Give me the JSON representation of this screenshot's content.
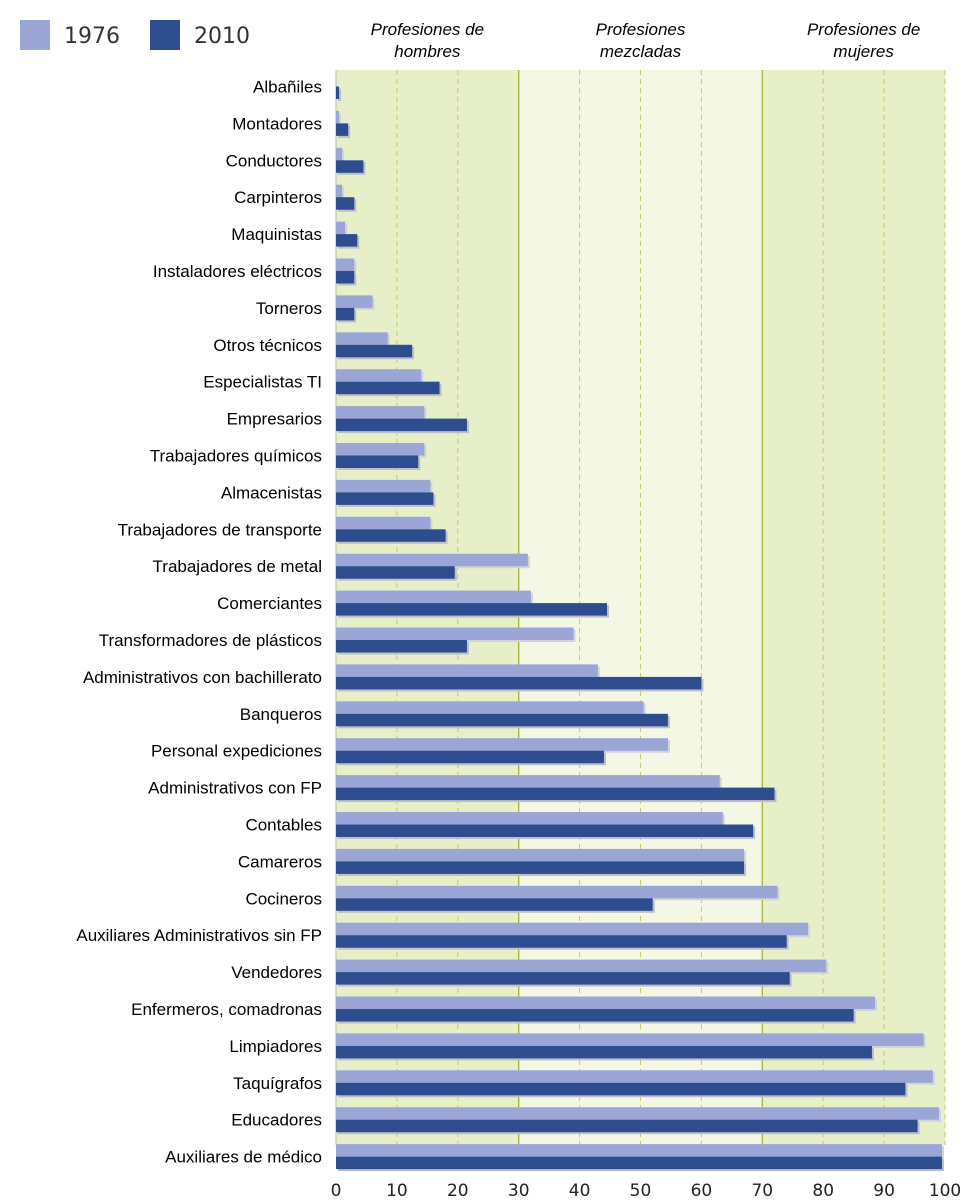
{
  "chart_data": {
    "type": "bar",
    "orientation": "horizontal",
    "xlim": [
      0,
      100
    ],
    "xticks": [
      "0",
      "10",
      "20",
      "30",
      "40",
      "50",
      "60",
      "70",
      "80",
      "90",
      "100"
    ],
    "grid": true,
    "legend_position": "top-left",
    "zones": [
      {
        "label_line1": "Profesiones de",
        "label_line2": "hombres",
        "range": [
          0,
          30
        ],
        "color": "#e6efc7"
      },
      {
        "label_line1": "Profesiones",
        "label_line2": "mezcladas",
        "range": [
          30,
          70
        ],
        "color": "#f4f7e4"
      },
      {
        "label_line1": "Profesiones de",
        "label_line2": "mujeres",
        "range": [
          70,
          100
        ],
        "color": "#e6efc7"
      }
    ],
    "categories": [
      "Albañiles",
      "Montadores",
      "Conductores",
      "Carpinteros",
      "Maquinistas",
      "Instaladores eléctricos",
      "Torneros",
      "Otros técnicos",
      "Especialistas TI",
      "Empresarios",
      "Trabajadores químicos",
      "Almacenistas",
      "Trabajadores de transporte",
      "Trabajadores de metal",
      "Comerciantes",
      "Transformadores de plásticos",
      "Administrativos con bachillerato",
      "Banqueros",
      "Personal expediciones",
      "Administrativos con FP",
      "Contables",
      "Camareros",
      "Cocineros",
      "Auxiliares Administrativos sin FP",
      "Vendedores",
      "Enfermeros, comadronas",
      "Limpiadores",
      "Taquígrafos",
      "Educadores",
      "Auxiliares de médico"
    ],
    "series": [
      {
        "name": "1976",
        "color": "#9ba6d6",
        "values": [
          0,
          0.5,
          1,
          1,
          1.5,
          3,
          6,
          8.5,
          14,
          14.5,
          14.5,
          15.5,
          15.5,
          31.5,
          32,
          39,
          43,
          50.5,
          54.5,
          63,
          63.5,
          67,
          72.5,
          77.5,
          80.5,
          88.5,
          96.5,
          98,
          99,
          99.5
        ]
      },
      {
        "name": "2010",
        "color": "#2e4d8f",
        "values": [
          0.5,
          2,
          4.5,
          3,
          3.5,
          3,
          3,
          12.5,
          17,
          21.5,
          13.5,
          16,
          18,
          19.5,
          44.5,
          21.5,
          60,
          54.5,
          44,
          72,
          68.5,
          67,
          52,
          74,
          74.5,
          85,
          88,
          93.5,
          95.5,
          99.5
        ]
      }
    ]
  }
}
